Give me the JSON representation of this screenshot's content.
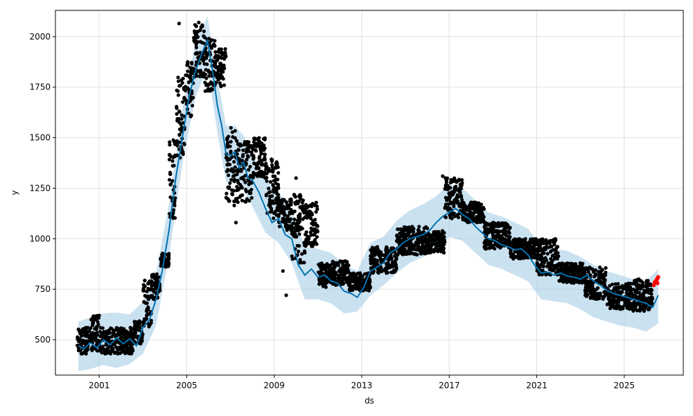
{
  "chart_data": {
    "type": "scatter",
    "title": "",
    "xlabel": "ds",
    "ylabel": "y",
    "xlim": [
      1999.0,
      2027.7
    ],
    "ylim": [
      325,
      2130
    ],
    "x_ticks": [
      2001,
      2005,
      2009,
      2013,
      2017,
      2021,
      2025
    ],
    "x_tick_labels": [
      "2001",
      "2005",
      "2009",
      "2013",
      "2017",
      "2021",
      "2025"
    ],
    "y_ticks": [
      500,
      750,
      1000,
      1250,
      1500,
      1750,
      2000
    ],
    "y_tick_labels": [
      "500",
      "750",
      "1000",
      "1250",
      "1500",
      "1750",
      "2000"
    ],
    "grid": true,
    "legend": "none",
    "colors": {
      "observed": "#000000",
      "forecast": "#0072B2",
      "interval": "#a6cde6",
      "recent": "#ff0000",
      "grid": "#e0e0e0"
    },
    "series": [
      {
        "kind": "forecast_line",
        "x": [
          2000.05,
          2000.3,
          2000.6,
          2000.9,
          2001.2,
          2001.5,
          2001.8,
          2002.1,
          2002.4,
          2002.7,
          2003.0,
          2003.3,
          2003.6,
          2003.9,
          2004.2,
          2004.5,
          2004.8,
          2005.1,
          2005.4,
          2005.7,
          2005.95,
          2006.2,
          2006.4,
          2006.6,
          2006.8,
          2007.0,
          2007.2,
          2007.4,
          2007.6,
          2007.8,
          2008.0,
          2008.3,
          2008.6,
          2008.9,
          2009.2,
          2009.5,
          2009.8,
          2010.1,
          2010.4,
          2010.7,
          2011.0,
          2011.3,
          2011.6,
          2011.9,
          2012.2,
          2012.5,
          2012.8,
          2013.1,
          2013.4,
          2013.7,
          2014.0,
          2014.3,
          2014.6,
          2014.9,
          2015.2,
          2015.5,
          2015.8,
          2016.1,
          2016.4,
          2016.7,
          2017.0,
          2017.3,
          2017.6,
          2017.9,
          2018.2,
          2018.5,
          2018.8,
          2019.1,
          2019.4,
          2019.7,
          2020.0,
          2020.3,
          2020.6,
          2020.9,
          2021.2,
          2021.5,
          2021.8,
          2022.1,
          2022.4,
          2022.7,
          2023.0,
          2023.3,
          2023.6,
          2023.9,
          2024.2,
          2024.5,
          2024.8,
          2025.1,
          2025.4,
          2025.7,
          2026.0,
          2026.3,
          2026.55
        ],
        "y": [
          470,
          455,
          485,
          460,
          500,
          475,
          510,
          480,
          505,
          470,
          560,
          600,
          700,
          850,
          1050,
          1300,
          1500,
          1700,
          1830,
          1920,
          1980,
          1820,
          1660,
          1560,
          1420,
          1410,
          1430,
          1350,
          1380,
          1300,
          1290,
          1230,
          1150,
          1080,
          1100,
          1020,
          1000,
          870,
          820,
          850,
          810,
          820,
          790,
          780,
          740,
          730,
          710,
          760,
          840,
          860,
          880,
          930,
          950,
          980,
          1000,
          1010,
          1020,
          1040,
          1080,
          1110,
          1130,
          1150,
          1120,
          1100,
          1060,
          1030,
          1000,
          990,
          970,
          960,
          945,
          950,
          920,
          870,
          830,
          835,
          820,
          830,
          815,
          810,
          800,
          820,
          790,
          770,
          745,
          730,
          720,
          710,
          700,
          690,
          680,
          660,
          720
        ]
      },
      {
        "kind": "interval_upper",
        "x": [
          2000.05,
          2000.6,
          2001.2,
          2001.8,
          2002.4,
          2003.0,
          2003.6,
          2004.2,
          2004.8,
          2005.4,
          2005.95,
          2006.4,
          2006.8,
          2007.2,
          2007.6,
          2008.0,
          2008.6,
          2009.2,
          2009.8,
          2010.4,
          2011.0,
          2011.6,
          2012.2,
          2012.8,
          2013.4,
          2014.0,
          2014.6,
          2015.2,
          2015.8,
          2016.4,
          2017.0,
          2017.6,
          2018.2,
          2018.8,
          2019.4,
          2020.0,
          2020.6,
          2021.2,
          2021.8,
          2022.4,
          2023.0,
          2023.6,
          2024.2,
          2024.8,
          2025.4,
          2026.0,
          2026.55
        ],
        "y": [
          590,
          610,
          630,
          635,
          625,
          690,
          830,
          1180,
          1640,
          1970,
          2100,
          1800,
          1560,
          1560,
          1510,
          1420,
          1290,
          1230,
          1140,
          960,
          950,
          930,
          870,
          840,
          980,
          1010,
          1090,
          1140,
          1170,
          1210,
          1270,
          1250,
          1190,
          1130,
          1110,
          1080,
          1050,
          960,
          950,
          940,
          910,
          870,
          840,
          820,
          800,
          790,
          850
        ]
      },
      {
        "kind": "interval_lower",
        "x": [
          2000.05,
          2000.6,
          2001.2,
          2001.8,
          2002.4,
          2003.0,
          2003.6,
          2004.2,
          2004.8,
          2005.4,
          2005.95,
          2006.4,
          2006.8,
          2007.2,
          2007.6,
          2008.0,
          2008.6,
          2009.2,
          2009.8,
          2010.4,
          2011.0,
          2011.6,
          2012.2,
          2012.8,
          2013.4,
          2014.0,
          2014.6,
          2015.2,
          2015.8,
          2016.4,
          2017.0,
          2017.6,
          2018.2,
          2018.8,
          2019.4,
          2020.0,
          2020.6,
          2021.2,
          2021.8,
          2022.4,
          2023.0,
          2023.6,
          2024.2,
          2024.8,
          2025.4,
          2026.0,
          2026.55
        ],
        "y": [
          345,
          355,
          375,
          360,
          380,
          430,
          570,
          920,
          1370,
          1700,
          1850,
          1530,
          1280,
          1280,
          1240,
          1160,
          1030,
          980,
          880,
          700,
          700,
          680,
          630,
          640,
          720,
          770,
          830,
          880,
          910,
          940,
          1010,
          990,
          930,
          870,
          850,
          820,
          790,
          700,
          690,
          680,
          650,
          610,
          590,
          570,
          560,
          540,
          580
        ]
      },
      {
        "kind": "observed",
        "clusters": [
          {
            "x0": 2000.0,
            "x1": 2000.6,
            "ymin": 430,
            "ymax": 560
          },
          {
            "x0": 2000.6,
            "x1": 2001.0,
            "ymin": 440,
            "ymax": 620
          },
          {
            "x0": 2001.0,
            "x1": 2002.6,
            "ymin": 430,
            "ymax": 560
          },
          {
            "x0": 2002.6,
            "x1": 2003.0,
            "ymin": 480,
            "ymax": 600
          },
          {
            "x0": 2003.0,
            "x1": 2003.4,
            "ymin": 560,
            "ymax": 800
          },
          {
            "x0": 2003.4,
            "x1": 2003.8,
            "ymin": 700,
            "ymax": 830
          },
          {
            "x0": 2003.8,
            "x1": 2004.2,
            "ymin": 860,
            "ymax": 930
          },
          {
            "x0": 2004.2,
            "x1": 2004.5,
            "ymin": 1100,
            "ymax": 1500
          },
          {
            "x0": 2004.5,
            "x1": 2004.9,
            "ymin": 1400,
            "ymax": 1800
          },
          {
            "x0": 2004.9,
            "x1": 2005.3,
            "ymin": 1600,
            "ymax": 1900
          },
          {
            "x0": 2005.3,
            "x1": 2005.8,
            "ymin": 1800,
            "ymax": 2060
          },
          {
            "x0": 2005.8,
            "x1": 2006.3,
            "ymin": 1730,
            "ymax": 2000
          },
          {
            "x0": 2006.3,
            "x1": 2006.8,
            "ymin": 1750,
            "ymax": 1950
          },
          {
            "x0": 2006.8,
            "x1": 2007.3,
            "ymin": 1150,
            "ymax": 1550
          },
          {
            "x0": 2007.3,
            "x1": 2008.0,
            "ymin": 1180,
            "ymax": 1480
          },
          {
            "x0": 2008.0,
            "x1": 2008.6,
            "ymin": 1300,
            "ymax": 1500
          },
          {
            "x0": 2008.6,
            "x1": 2009.2,
            "ymin": 1100,
            "ymax": 1400
          },
          {
            "x0": 2009.2,
            "x1": 2009.8,
            "ymin": 1040,
            "ymax": 1200
          },
          {
            "x0": 2009.8,
            "x1": 2010.4,
            "ymin": 880,
            "ymax": 1220
          },
          {
            "x0": 2010.4,
            "x1": 2011.0,
            "ymin": 960,
            "ymax": 1180
          },
          {
            "x0": 2011.0,
            "x1": 2011.6,
            "ymin": 760,
            "ymax": 880
          },
          {
            "x0": 2011.6,
            "x1": 2012.4,
            "ymin": 770,
            "ymax": 890
          },
          {
            "x0": 2012.4,
            "x1": 2013.4,
            "ymin": 740,
            "ymax": 830
          },
          {
            "x0": 2013.4,
            "x1": 2014.6,
            "ymin": 830,
            "ymax": 960
          },
          {
            "x0": 2014.6,
            "x1": 2016.0,
            "ymin": 920,
            "ymax": 1060
          },
          {
            "x0": 2016.0,
            "x1": 2016.8,
            "ymin": 930,
            "ymax": 1040
          },
          {
            "x0": 2016.8,
            "x1": 2017.6,
            "ymin": 1100,
            "ymax": 1300
          },
          {
            "x0": 2017.6,
            "x1": 2018.6,
            "ymin": 1080,
            "ymax": 1180
          },
          {
            "x0": 2018.6,
            "x1": 2019.8,
            "ymin": 950,
            "ymax": 1080
          },
          {
            "x0": 2019.8,
            "x1": 2021.0,
            "ymin": 900,
            "ymax": 1000
          },
          {
            "x0": 2021.0,
            "x1": 2022.0,
            "ymin": 820,
            "ymax": 1000
          },
          {
            "x0": 2022.0,
            "x1": 2023.2,
            "ymin": 780,
            "ymax": 880
          },
          {
            "x0": 2023.2,
            "x1": 2024.2,
            "ymin": 700,
            "ymax": 860
          },
          {
            "x0": 2024.2,
            "x1": 2025.4,
            "ymin": 650,
            "ymax": 780
          },
          {
            "x0": 2025.4,
            "x1": 2026.3,
            "ymin": 640,
            "ymax": 800
          }
        ],
        "outliers": [
          {
            "x": 2001.0,
            "y": 620
          },
          {
            "x": 2004.65,
            "y": 2065
          },
          {
            "x": 2005.55,
            "y": 2070
          },
          {
            "x": 2009.55,
            "y": 720
          },
          {
            "x": 2007.25,
            "y": 1080
          },
          {
            "x": 2008.35,
            "y": 1390
          },
          {
            "x": 2010.0,
            "y": 1300
          },
          {
            "x": 2009.4,
            "y": 840
          },
          {
            "x": 2016.7,
            "y": 1310
          }
        ]
      },
      {
        "kind": "recent",
        "x": [
          2026.35,
          2026.4,
          2026.45,
          2026.5,
          2026.52,
          2026.55
        ],
        "y": [
          770,
          785,
          790,
          800,
          780,
          810
        ]
      }
    ]
  }
}
